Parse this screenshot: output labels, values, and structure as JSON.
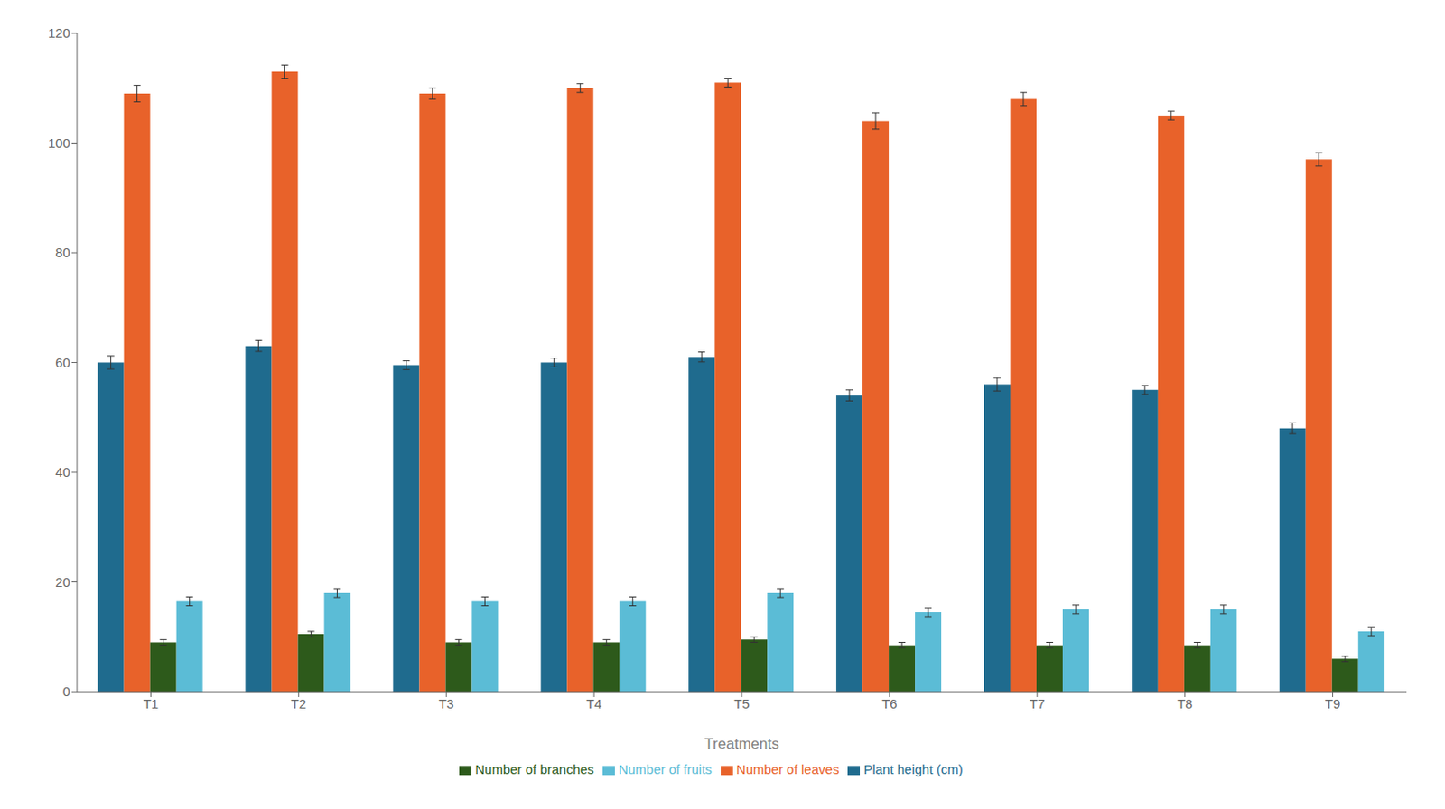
{
  "chart_data": {
    "type": "bar",
    "xlabel": "Treatments",
    "categories": [
      "T1",
      "T2",
      "T3",
      "T4",
      "T5",
      "T6",
      "T7",
      "T8",
      "T9"
    ],
    "series": [
      {
        "name": "Plant height (cm)",
        "color": "#1F6B8E",
        "values": [
          60,
          63,
          59.5,
          60,
          61,
          54,
          56,
          55,
          48
        ],
        "errors": [
          1.2,
          1.0,
          0.8,
          0.8,
          0.9,
          1.0,
          1.2,
          0.8,
          1.0
        ]
      },
      {
        "name": "Number of leaves",
        "color": "#E8622A",
        "values": [
          109,
          113,
          109,
          110,
          111,
          104,
          108,
          105,
          97
        ],
        "errors": [
          1.5,
          1.2,
          1.0,
          0.8,
          0.8,
          1.5,
          1.2,
          0.8,
          1.2
        ]
      },
      {
        "name": "Number of branches",
        "color": "#2D5A1B",
        "values": [
          9,
          10.5,
          9,
          9,
          9.5,
          8.5,
          8.5,
          8.5,
          6
        ],
        "errors": [
          0.5,
          0.5,
          0.5,
          0.5,
          0.5,
          0.5,
          0.5,
          0.5,
          0.5
        ]
      },
      {
        "name": "Number of fruits",
        "color": "#5BBCD6",
        "values": [
          16.5,
          18,
          16.5,
          16.5,
          18,
          14.5,
          15,
          15,
          11
        ],
        "errors": [
          0.8,
          0.8,
          0.8,
          0.8,
          0.8,
          0.8,
          0.8,
          0.8,
          0.8
        ]
      }
    ],
    "ylim": [
      0,
      120
    ],
    "yticks": [
      0,
      20,
      40,
      60,
      80,
      100,
      120
    ],
    "grid": false,
    "legend": "bottom"
  }
}
